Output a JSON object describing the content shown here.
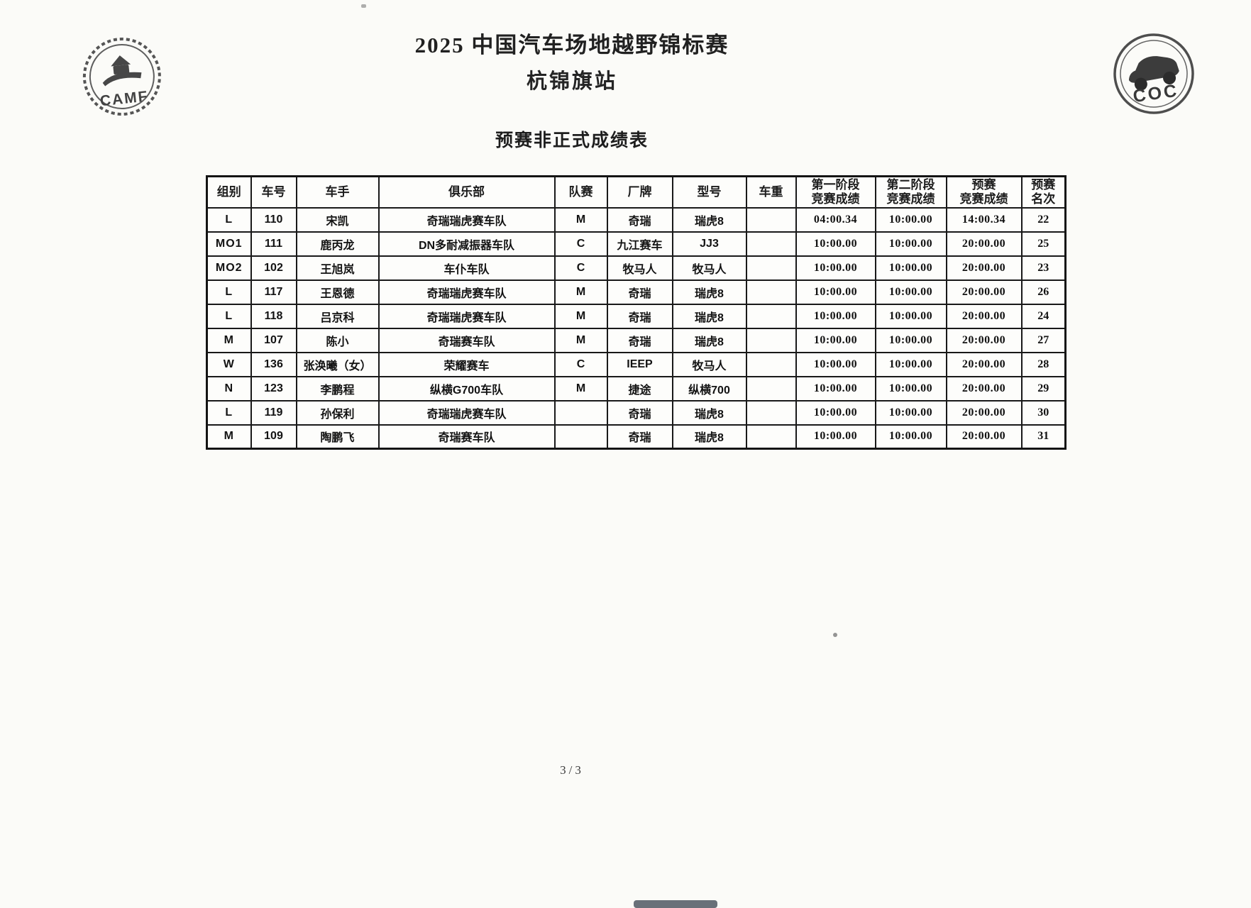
{
  "page": {
    "title_line1": "2025 中国汽车场地越野锦标赛",
    "title_line2": "杭锦旗站",
    "subtitle": "预赛非正式成绩表",
    "page_number": "3/3"
  },
  "logos": {
    "left_text": "CAMF",
    "right_text": "COC"
  },
  "table": {
    "columns": [
      "组别",
      "车号",
      "车手",
      "俱乐部",
      "队赛",
      "厂牌",
      "型号",
      "车重",
      "第一阶段\n竞赛成绩",
      "第二阶段\n竞赛成绩",
      "预赛\n竞赛成绩",
      "预赛\n名次"
    ],
    "rows": [
      [
        "L",
        "110",
        "宋凯",
        "奇瑞瑞虎赛车队",
        "M",
        "奇瑞",
        "瑞虎8",
        "",
        "04:00.34",
        "10:00.00",
        "14:00.34",
        "22"
      ],
      [
        "MO1",
        "111",
        "鹿丙龙",
        "DN多耐减振器车队",
        "C",
        "九江赛车",
        "JJ3",
        "",
        "10:00.00",
        "10:00.00",
        "20:00.00",
        "25"
      ],
      [
        "MO2",
        "102",
        "王旭岚",
        "车仆车队",
        "C",
        "牧马人",
        "牧马人",
        "",
        "10:00.00",
        "10:00.00",
        "20:00.00",
        "23"
      ],
      [
        "L",
        "117",
        "王恩德",
        "奇瑞瑞虎赛车队",
        "M",
        "奇瑞",
        "瑞虎8",
        "",
        "10:00.00",
        "10:00.00",
        "20:00.00",
        "26"
      ],
      [
        "L",
        "118",
        "吕京科",
        "奇瑞瑞虎赛车队",
        "M",
        "奇瑞",
        "瑞虎8",
        "",
        "10:00.00",
        "10:00.00",
        "20:00.00",
        "24"
      ],
      [
        "M",
        "107",
        "陈小",
        "奇瑞赛车队",
        "M",
        "奇瑞",
        "瑞虎8",
        "",
        "10:00.00",
        "10:00.00",
        "20:00.00",
        "27"
      ],
      [
        "W",
        "136",
        "张涣曦（女）",
        "荣耀赛车",
        "C",
        "IEEP",
        "牧马人",
        "",
        "10:00.00",
        "10:00.00",
        "20:00.00",
        "28"
      ],
      [
        "N",
        "123",
        "李鹏程",
        "纵横G700车队",
        "M",
        "捷途",
        "纵横700",
        "",
        "10:00.00",
        "10:00.00",
        "20:00.00",
        "29"
      ],
      [
        "L",
        "119",
        "孙保利",
        "奇瑞瑞虎赛车队",
        "",
        "奇瑞",
        "瑞虎8",
        "",
        "10:00.00",
        "10:00.00",
        "20:00.00",
        "30"
      ],
      [
        "M",
        "109",
        "陶鹏飞",
        "奇瑞赛车队",
        "",
        "奇瑞",
        "瑞虎8",
        "",
        "10:00.00",
        "10:00.00",
        "20:00.00",
        "31"
      ]
    ]
  }
}
